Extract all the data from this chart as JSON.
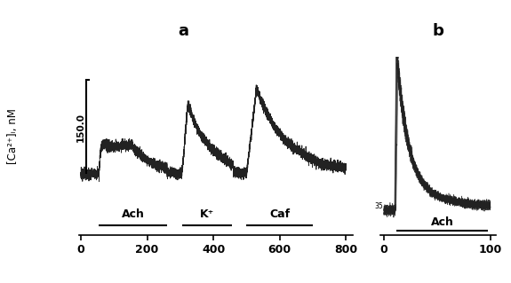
{
  "title_a": "a",
  "title_b": "b",
  "ylabel": "[Ca²⁺]ᵢ, nM",
  "scale_label": "150.0",
  "panel_a": {
    "xlim": [
      -5,
      820
    ],
    "xticks": [
      0,
      200,
      400,
      600,
      800
    ],
    "ylim": [
      -15,
      175
    ],
    "annotations": [
      {
        "label": "Ach",
        "x_start": 55,
        "x_end": 260,
        "bar_y": -5
      },
      {
        "label": "K⁺",
        "x_start": 305,
        "x_end": 455,
        "bar_y": -5
      },
      {
        "label": "Caf",
        "x_start": 500,
        "x_end": 700,
        "bar_y": -5
      }
    ],
    "scale_x": 15,
    "scale_y_bottom": 50,
    "scale_y_top": 150,
    "baseline_level": 50
  },
  "panel_b": {
    "xlim": [
      -3,
      105
    ],
    "xticks": [
      0,
      100
    ],
    "ylim": [
      -15,
      380
    ],
    "annotations": [
      {
        "label": "Ach",
        "x_start": 12,
        "x_end": 98,
        "bar_y": -5
      }
    ],
    "baseline_level": 35,
    "peak_height": 340
  },
  "bg_color": "#ffffff",
  "line_color": "#222222",
  "text_color": "#000000",
  "noise_seed": 12
}
